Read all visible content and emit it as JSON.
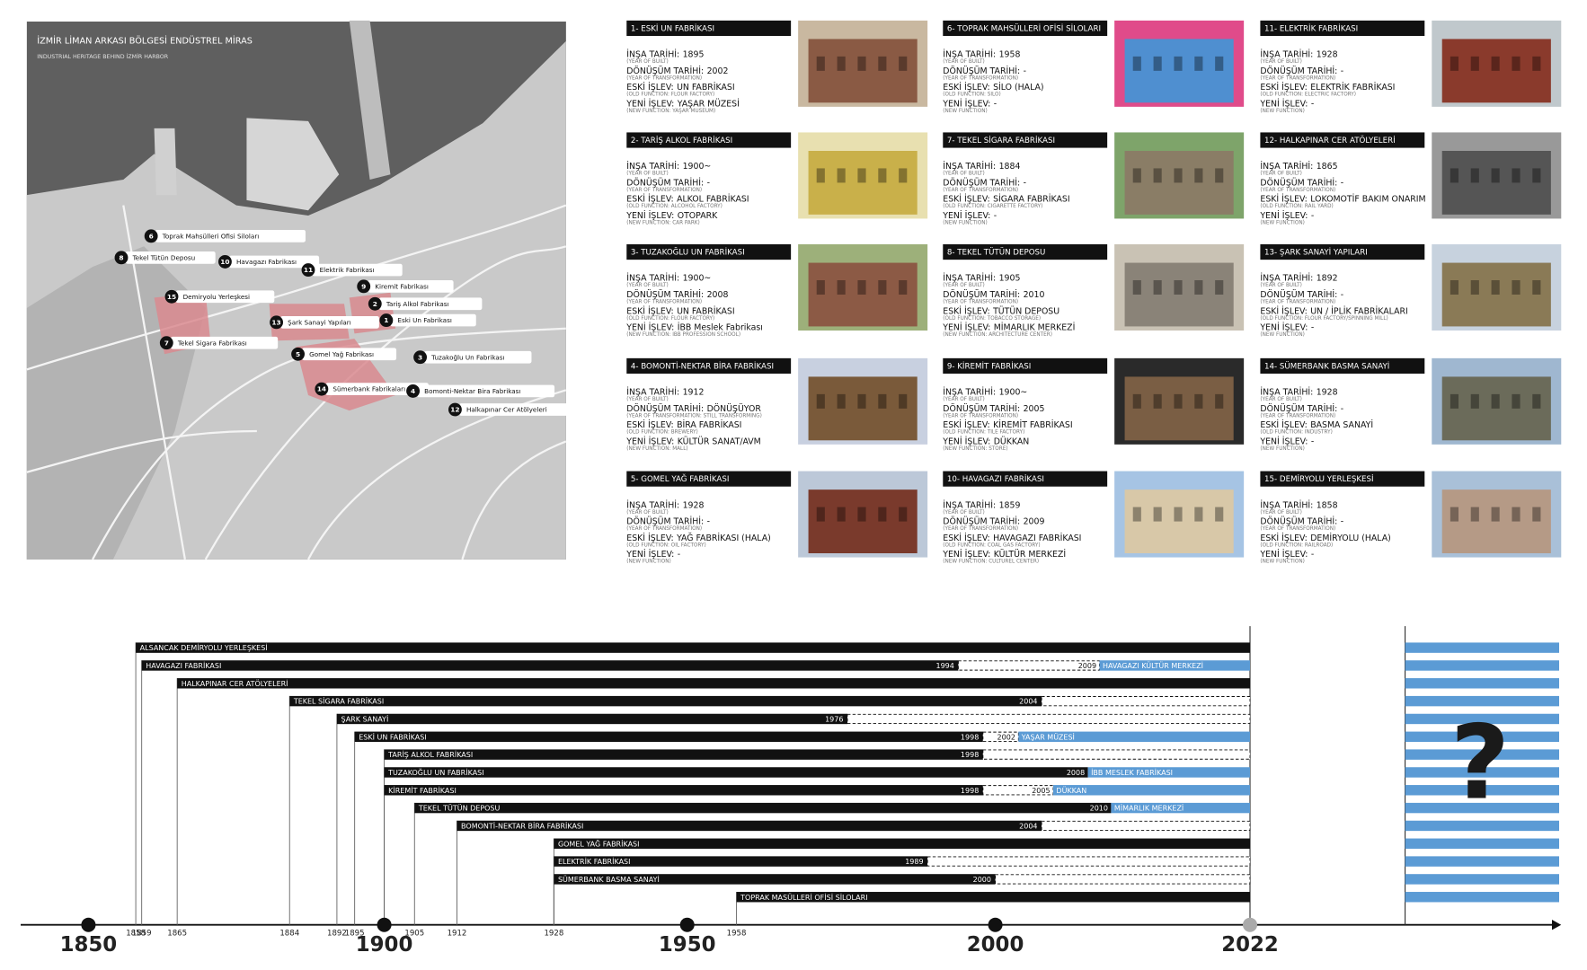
{
  "map": {
    "title": "İZMİR LİMAN ARKASI BÖLGESİ ENDÜSTREL MİRAS",
    "subtitle": "INDUSTRIAL HERITAGE BEHIND İZMİR HARBOR",
    "markers": [
      {
        "number": "6",
        "label": "Toprak Mahsülleri Ofisi Siloları"
      },
      {
        "number": "8",
        "label": "Tekel Tütün Deposu"
      },
      {
        "number": "10",
        "label": "Havagazı Fabrikası"
      },
      {
        "number": "11",
        "label": "Elektrik Fabrikası"
      },
      {
        "number": "9",
        "label": "Kiremit Fabrikası"
      },
      {
        "number": "15",
        "label": "Demiryolu Yerleşkesi"
      },
      {
        "number": "2",
        "label": "Tariş Alkol Fabrikası"
      },
      {
        "number": "13",
        "label": "Şark Sanayi Yapıları"
      },
      {
        "number": "1",
        "label": "Eski Un Fabrikası"
      },
      {
        "number": "7",
        "label": "Tekel Sigara Fabrikası"
      },
      {
        "number": "5",
        "label": "Gomel Yağ Fabrikası"
      },
      {
        "number": "3",
        "label": "Tuzakoğlu Un Fabrikası"
      },
      {
        "number": "14",
        "label": "Sümerbank Fabrikaları"
      },
      {
        "number": "4",
        "label": "Bomonti-Nektar Bira Fabrikası"
      },
      {
        "number": "12",
        "label": "Halkapınar Cer Atölyeleri"
      }
    ]
  },
  "card_fields": [
    "İNŞA TARİHİ:",
    "DÖNÜŞÜM TARİHİ:",
    "ESKİ İŞLEV:",
    "YENİ İŞLEV:"
  ],
  "cards": [
    {
      "title": "1- ESKİ UN FABRİKASI",
      "rows": [
        [
          "1895",
          "(YEAR OF BUILT)"
        ],
        [
          "2002",
          "(YEAR OF TRANSFORMATION)"
        ],
        [
          "UN FABRİKASI",
          "(OLD FUNCTION: FLOUR FACTORY)"
        ],
        [
          "YAŞAR MÜZESİ",
          "(NEW FUNCTION: YAŞAR MUSEUM)"
        ]
      ]
    },
    {
      "title": "2- TARİŞ ALKOL FABRİKASI",
      "rows": [
        [
          "1900~",
          "(YEAR OF BUILT)"
        ],
        [
          "-",
          "(YEAR OF TRANSFORMATION)"
        ],
        [
          "ALKOL FABRİKASI",
          "(OLD FUNCTION: ALCOHOL FACTORY)"
        ],
        [
          "OTOPARK",
          "(NEW FUNCTION: CAR PARK)"
        ]
      ]
    },
    {
      "title": "3- TUZAKOĞLU UN FABRİKASI",
      "rows": [
        [
          "1900~",
          "(YEAR OF BUILT)"
        ],
        [
          "2008",
          "(YEAR OF TRANSFORMATION)"
        ],
        [
          "UN FABRİKASI",
          "(OLD FUNCTION: FLOUR FACTORY)"
        ],
        [
          "İBB Meslek Fabrikası",
          "(NEW FUNCTION: IBB PROFESSION SCHOOL)"
        ]
      ]
    },
    {
      "title": "4- BOMONTİ-NEKTAR BİRA FABRİKASI",
      "rows": [
        [
          "1912",
          "(YEAR OF BUILT)"
        ],
        [
          "DÖNÜŞÜYOR",
          "(YEAR OF TRANSFORMATION: STILL TRANSFORMING)"
        ],
        [
          "BİRA FABRİKASI",
          "(OLD FUNCTION: BREWERY)"
        ],
        [
          "KÜLTÜR SANAT/AVM",
          "(NEW FUNCTION: MALL)"
        ]
      ]
    },
    {
      "title": "5- GOMEL YAĞ FABRİKASI",
      "rows": [
        [
          "1928",
          "(YEAR OF BUILT)"
        ],
        [
          "-",
          "(YEAR OF TRANSFORMATION)"
        ],
        [
          "YAĞ FABRİKASI (HALA)",
          "(OLD FUNCTION: OIL FACTORY)"
        ],
        [
          "-",
          "(NEW FUNCTION)"
        ]
      ]
    },
    {
      "title": "6- TOPRAK MAHSÜLLERİ OFİSİ SİLOLARI",
      "rows": [
        [
          "1958",
          "(YEAR OF BUILT)"
        ],
        [
          "-",
          "(YEAR OF TRANSFORMATION)"
        ],
        [
          "SİLO (HALA)",
          "(OLD FUNCTION: SILO)"
        ],
        [
          "-",
          "(NEW FUNCTION)"
        ]
      ]
    },
    {
      "title": "7- TEKEL SİGARA FABRİKASI",
      "rows": [
        [
          "1884",
          "(YEAR OF BUILT)"
        ],
        [
          "-",
          "(YEAR OF TRANSFORMATION)"
        ],
        [
          "SİGARA FABRİKASI",
          "(OLD FUNCTION: CIGARETTE FACTORY)"
        ],
        [
          "-",
          "(NEW FUNCTION)"
        ]
      ]
    },
    {
      "title": "8- TEKEL TÜTÜN DEPOSU",
      "rows": [
        [
          "1905",
          "(YEAR OF BUILT)"
        ],
        [
          "2010",
          "(YEAR OF TRANSFORMATION)"
        ],
        [
          "TÜTÜN DEPOSU",
          "(OLD FUNCTION: TOBACCO STORAGE)"
        ],
        [
          "MİMARLIK MERKEZİ",
          "(NEW FUNCTION: ARCHITECTURE CENTER)"
        ]
      ]
    },
    {
      "title": "9- KİREMİT FABRİKASI",
      "rows": [
        [
          "1900~",
          "(YEAR OF BUILT)"
        ],
        [
          "2005",
          "(YEAR OF TRANSFORMATION)"
        ],
        [
          "KİREMİT FABRİKASI",
          "(OLD FUNCTION: TILE FACTORY)"
        ],
        [
          "DÜKKAN",
          "(NEW FUNCTION: STORE)"
        ]
      ]
    },
    {
      "title": "10- HAVAGAZI FABRİKASI",
      "rows": [
        [
          "1859",
          "(YEAR OF BUILT)"
        ],
        [
          "2009",
          "(YEAR OF TRANSFORMATION)"
        ],
        [
          "HAVAGAZI FABRİKASI",
          "(OLD FUNCTION: COAL GAS FACTORY)"
        ],
        [
          "KÜLTÜR MERKEZİ",
          "(NEW FUNCTION: CULTUREL CENTER)"
        ]
      ]
    },
    {
      "title": "11- ELEKTRİK FABRİKASI",
      "rows": [
        [
          "1928",
          "(YEAR OF BUILT)"
        ],
        [
          "-",
          "(YEAR OF TRANSFORMATION)"
        ],
        [
          "ELEKTRİK FABRİKASI",
          "(OLD FUNCTION: ELECTRIC FACTORY)"
        ],
        [
          "-",
          "(NEW FUNCTION)"
        ]
      ]
    },
    {
      "title": "12- HALKAPINAR CER ATÖLYELERİ",
      "rows": [
        [
          "1865",
          "(YEAR OF BUILT)"
        ],
        [
          "-",
          "(YEAR OF TRANSFORMATION)"
        ],
        [
          "LOKOMOTİF BAKIM ONARIM",
          "(OLD FUNCTION: RAIL YARD)"
        ],
        [
          "-",
          "(NEW FUNCTION)"
        ]
      ]
    },
    {
      "title": "13- ŞARK SANAYİ YAPILARI",
      "rows": [
        [
          "1892",
          "(YEAR OF BUILT)"
        ],
        [
          "-",
          "(YEAR OF TRANSFORMATION)"
        ],
        [
          "UN / İPLİK FABRİKALARI",
          "(OLD FUNCTION: FLOUR FACTORY/SPINNING MILL)"
        ],
        [
          "-",
          "(NEW FUNCTION)"
        ]
      ]
    },
    {
      "title": "14- SÜMERBANK BASMA SANAYİ",
      "rows": [
        [
          "1928",
          "(YEAR OF BUILT)"
        ],
        [
          "-",
          "(YEAR OF TRANSFORMATION)"
        ],
        [
          "BASMA SANAYİ",
          "(OLD FUNCTION: INDUSTRY)"
        ],
        [
          "-",
          "(NEW FUNCTION)"
        ]
      ]
    },
    {
      "title": "15- DEMİRYOLU YERLEŞKESİ",
      "rows": [
        [
          "1858",
          "(YEAR OF BUILT)"
        ],
        [
          "-",
          "(YEAR OF TRANSFORMATION)"
        ],
        [
          "DEMİRYOLU (HALA)",
          "(OLD FUNCTION: RAILROAD)"
        ],
        [
          "-",
          "(NEW FUNCTION)"
        ]
      ]
    }
  ],
  "timeline": {
    "major_ticks": [
      1850,
      1900,
      1950,
      2000,
      2022
    ],
    "bars": [
      {
        "name": "ALSANCAK DEMİRYOLU YERLEŞKESİ",
        "start": 1858
      },
      {
        "name": "HAVAGAZI FABRİKASI",
        "start": 1859,
        "closed": 1994,
        "transformed": 2009,
        "new_function": "HAVAGAZI KÜLTÜR MERKEZİ"
      },
      {
        "name": "HALKAPINAR CER ATÖLYELERİ",
        "start": 1865
      },
      {
        "name": "TEKEL SİGARA FABRİKASI",
        "start": 1884,
        "closed": 2004
      },
      {
        "name": "ŞARK SANAYİ",
        "start": 1892,
        "closed": 1976
      },
      {
        "name": "ESKİ UN FABRİKASI",
        "start": 1895,
        "closed": 1998,
        "transformed": 2002,
        "new_function": "YAŞAR MÜZESİ"
      },
      {
        "name": "TARİŞ ALKOL FABRİKASI",
        "start": 1900,
        "closed": 1998
      },
      {
        "name": "TUZAKOĞLU UN FABRİKASI",
        "start": 1900,
        "transformed": 2008,
        "new_function": "İBB MESLEK FABRİKASI"
      },
      {
        "name": "KİREMİT FABRİKASI",
        "start": 1900,
        "closed": 1998,
        "transformed": 2005,
        "new_function": "DÜKKAN"
      },
      {
        "name": "TEKEL TÜTÜN DEPOSU",
        "start": 1905,
        "transformed": 2010,
        "new_function": "MİMARLIK MERKEZİ"
      },
      {
        "name": "BOMONTİ-NEKTAR BİRA FABRİKASI",
        "start": 1912,
        "closed": 2004
      },
      {
        "name": "GOMEL YAĞ FABRİKASI",
        "start": 1928
      },
      {
        "name": "ELEKTRİK FABRİKASI",
        "start": 1928,
        "closed": 1989
      },
      {
        "name": "SÜMERBANK BASMA SANAYİ",
        "start": 1928,
        "closed": 2000
      },
      {
        "name": "TOPRAK MASÜLLERİ OFİSİ SİLOLARI",
        "start": 1958
      }
    ],
    "future": "?"
  }
}
